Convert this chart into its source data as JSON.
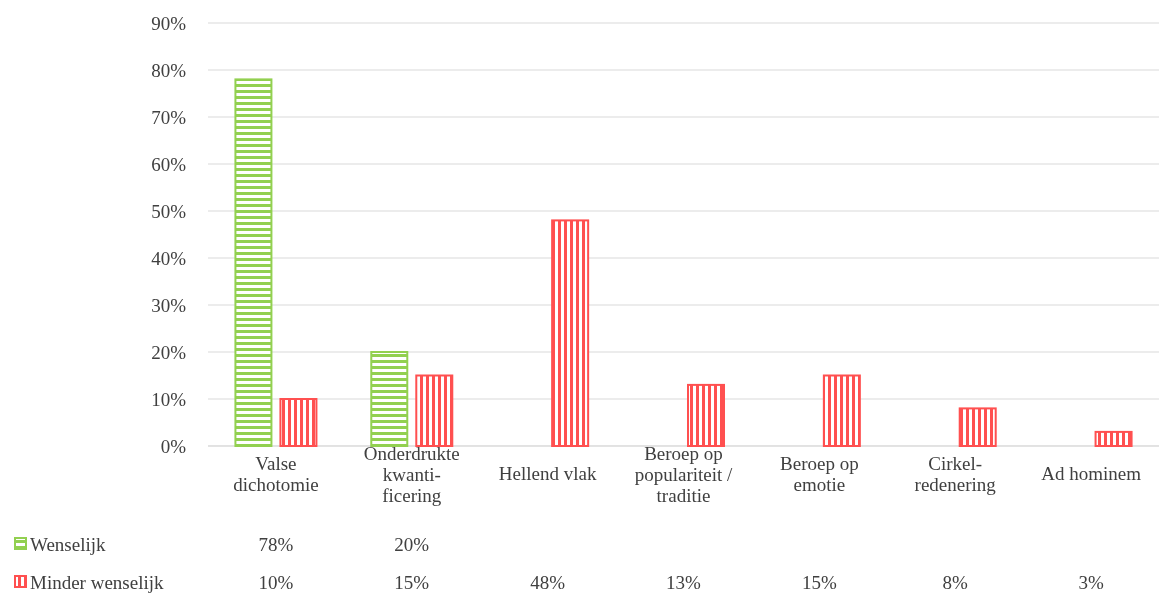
{
  "chart_data": {
    "type": "bar",
    "categories": [
      "Valse\ndichotomie",
      "Onderdrukte\nkwanti-\nficering",
      "Hellend vlak",
      "Beroep op\npopulariteit /\ntraditie",
      "Beroep op\nemotie",
      "Cirkel-\nredenering",
      "Ad hominem"
    ],
    "series": [
      {
        "name": "Wenselijk",
        "color": "#92d050",
        "values": [
          78,
          20,
          null,
          null,
          null,
          null,
          null
        ],
        "value_labels": [
          "78%",
          "20%",
          null,
          null,
          null,
          null,
          null
        ]
      },
      {
        "name": "Minder wenselijk",
        "color": "#ff5050",
        "values": [
          10,
          15,
          48,
          13,
          15,
          8,
          3
        ],
        "value_labels": [
          "10%",
          "15%",
          "48%",
          "13%",
          "15%",
          "8%",
          "3%"
        ]
      }
    ],
    "ylim": [
      0,
      90
    ],
    "yticks": [
      {
        "value": 0,
        "label": "0%"
      },
      {
        "value": 10,
        "label": "10%"
      },
      {
        "value": 20,
        "label": "20%"
      },
      {
        "value": 30,
        "label": "30%"
      },
      {
        "value": 40,
        "label": "40%"
      },
      {
        "value": 50,
        "label": "50%"
      },
      {
        "value": 60,
        "label": "60%"
      },
      {
        "value": 70,
        "label": "70%"
      },
      {
        "value": 80,
        "label": "80%"
      },
      {
        "value": 90,
        "label": "90%"
      }
    ],
    "grid": "y",
    "legend": "bottom"
  }
}
